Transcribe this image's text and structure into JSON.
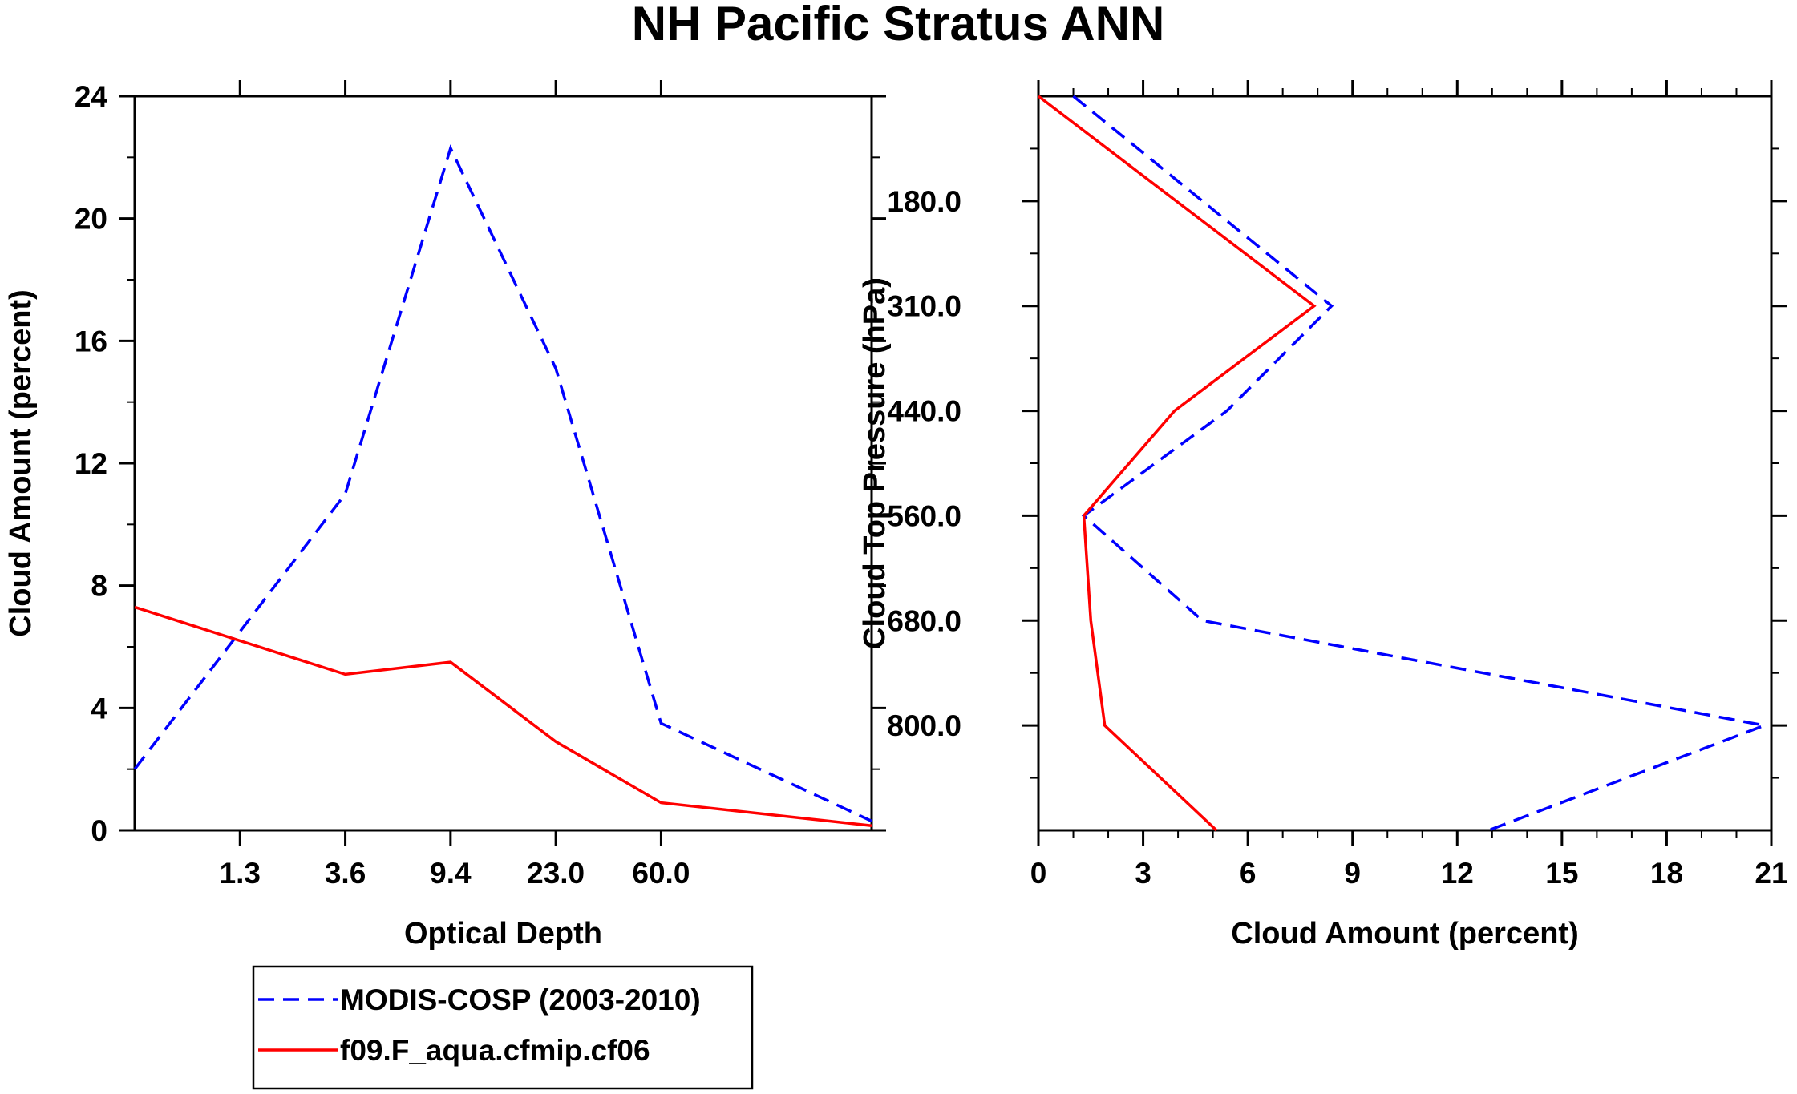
{
  "title": "NH Pacific Stratus ANN",
  "legend": {
    "placement": "bottom-left",
    "entries": [
      {
        "label": "MODIS-COSP (2003-2010)",
        "color": "#0000ff",
        "style": "dashed"
      },
      {
        "label": "f09.F_aqua.cfmip.cf06",
        "color": "#ff0000",
        "style": "solid"
      }
    ]
  },
  "chart_data": [
    {
      "type": "line",
      "xlabel": "Optical Depth",
      "ylabel": "Cloud Amount (percent)",
      "x_tick_labels": [
        "1.3",
        "3.6",
        "9.4",
        "23.0",
        "60.0"
      ],
      "y_ticks": [
        0,
        4,
        8,
        12,
        16,
        20,
        24
      ],
      "ylim": [
        0,
        24
      ],
      "x_bin_count": 7,
      "grid": false,
      "series": [
        {
          "name": "MODIS-COSP (2003-2010)",
          "color": "#0000ff",
          "style": "dashed",
          "values": [
            2.0,
            11.0,
            22.3,
            15.1,
            3.5,
            0.3
          ]
        },
        {
          "name": "f09.F_aqua.cfmip.cf06",
          "color": "#ff0000",
          "style": "solid",
          "values": [
            7.3,
            5.1,
            5.5,
            2.9,
            0.9,
            0.15
          ]
        }
      ]
    },
    {
      "type": "line",
      "xlabel": "Cloud Amount (percent)",
      "ylabel": "Cloud Top Pressure (hPa)",
      "x_ticks": [
        0,
        3,
        6,
        9,
        12,
        15,
        18,
        21
      ],
      "xlim": [
        0,
        21
      ],
      "y_tick_labels": [
        "180.0",
        "310.0",
        "440.0",
        "560.0",
        "680.0",
        "800.0"
      ],
      "y_bin_count": 7,
      "grid": false,
      "series": [
        {
          "name": "MODIS-COSP (2003-2010)",
          "color": "#0000ff",
          "style": "dashed",
          "values": [
            1.0,
            8.4,
            5.4,
            1.3,
            4.7,
            20.8,
            12.9
          ]
        },
        {
          "name": "f09.F_aqua.cfmip.cf06",
          "color": "#ff0000",
          "style": "solid",
          "values": [
            0.0,
            7.9,
            3.9,
            1.3,
            1.5,
            1.9,
            5.1
          ]
        }
      ]
    }
  ]
}
